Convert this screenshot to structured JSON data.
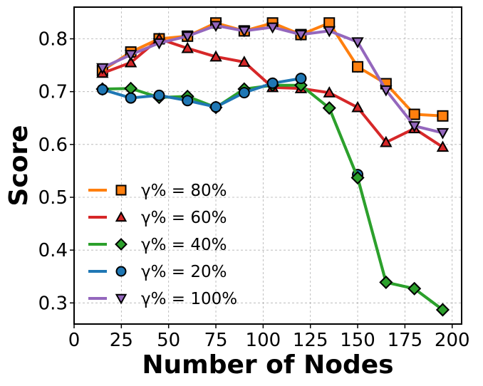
{
  "chart_data": {
    "type": "line",
    "xlabel": "Number of Nodes",
    "ylabel": "Score",
    "xlim": [
      0,
      205
    ],
    "ylim": [
      0.26,
      0.86
    ],
    "xticks": [
      0,
      25,
      50,
      75,
      100,
      125,
      150,
      175,
      200
    ],
    "xtick_labels": [
      "0",
      "25",
      "50",
      "75",
      "100",
      "125",
      "150",
      "175",
      "200"
    ],
    "yticks": [
      0.3,
      0.4,
      0.5,
      0.6,
      0.7,
      0.8
    ],
    "ytick_labels": [
      "0.3",
      "0.4",
      "0.5",
      "0.6",
      "0.7",
      "0.8"
    ],
    "grid": true,
    "legend_position": "lower-left",
    "series": [
      {
        "name": "γ% = 80%",
        "color": "#ff7f0e",
        "marker": "square",
        "x": [
          15,
          30,
          45,
          60,
          75,
          90,
          105,
          120,
          135,
          150,
          165,
          180,
          195
        ],
        "y": [
          0.74,
          0.775,
          0.8,
          0.805,
          0.83,
          0.815,
          0.83,
          0.808,
          0.83,
          0.747,
          0.715,
          0.657,
          0.654
        ]
      },
      {
        "name": "γ% = 60%",
        "color": "#d62728",
        "marker": "triangle-up",
        "x": [
          15,
          30,
          45,
          60,
          75,
          90,
          105,
          120,
          135,
          150,
          165,
          180,
          195
        ],
        "y": [
          0.735,
          0.755,
          0.8,
          0.782,
          0.766,
          0.756,
          0.708,
          0.706,
          0.698,
          0.67,
          0.604,
          0.63,
          0.595
        ]
      },
      {
        "name": "γ% = 40%",
        "color": "#2ca02c",
        "marker": "diamond",
        "x": [
          15,
          30,
          45,
          60,
          75,
          90,
          105,
          120,
          135,
          150,
          165,
          180,
          195
        ],
        "y": [
          0.705,
          0.706,
          0.689,
          0.691,
          0.67,
          0.705,
          0.712,
          0.712,
          0.669,
          0.537,
          0.339,
          0.327,
          0.287
        ]
      },
      {
        "name": "γ% = 20%",
        "color": "#1f77b4",
        "marker": "circle",
        "x": [
          15,
          30,
          45,
          60,
          75,
          90,
          105,
          120
        ],
        "y": [
          0.704,
          0.688,
          0.693,
          0.683,
          0.671,
          0.698,
          0.716,
          0.725
        ]
      },
      {
        "name": "γ% = 100%",
        "color": "#9467bd",
        "marker": "triangle-down",
        "x": [
          15,
          30,
          45,
          60,
          75,
          90,
          105,
          120,
          135,
          150,
          165,
          180,
          195
        ],
        "y": [
          0.745,
          0.77,
          0.792,
          0.805,
          0.825,
          0.815,
          0.822,
          0.808,
          0.815,
          0.794,
          0.703,
          0.635,
          0.622
        ]
      }
    ],
    "extra_points": [
      {
        "series": "γ% = 20%",
        "x": 150,
        "y": 0.543
      }
    ]
  }
}
